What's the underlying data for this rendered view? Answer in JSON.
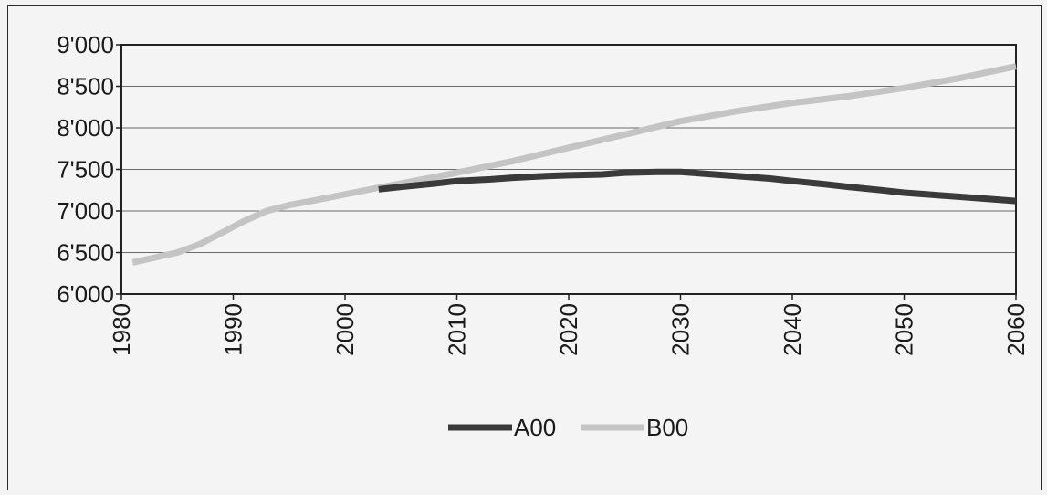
{
  "chart_data": {
    "type": "line",
    "title": "",
    "xlabel": "",
    "ylabel": "",
    "xlim": [
      1980,
      2060
    ],
    "ylim": [
      6000,
      9000
    ],
    "grid": true,
    "legend_position": "bottom",
    "y_ticks": [
      "6'000",
      "6'500",
      "7'000",
      "7'500",
      "8'000",
      "8'500",
      "9'000"
    ],
    "x_ticks": [
      "1980",
      "1990",
      "2000",
      "2010",
      "2020",
      "2030",
      "2040",
      "2050",
      "2060"
    ],
    "series": [
      {
        "name": "A00",
        "color": "#3a3a3a",
        "x": [
          2003,
          2005,
          2008,
          2010,
          2013,
          2015,
          2018,
          2020,
          2023,
          2025,
          2028,
          2030,
          2033,
          2035,
          2038,
          2040,
          2043,
          2045,
          2048,
          2050,
          2053,
          2055,
          2058,
          2060
        ],
        "y": [
          7260,
          7290,
          7330,
          7360,
          7380,
          7400,
          7420,
          7430,
          7440,
          7460,
          7470,
          7470,
          7440,
          7420,
          7390,
          7360,
          7320,
          7290,
          7250,
          7220,
          7190,
          7170,
          7140,
          7120
        ]
      },
      {
        "name": "B00",
        "color": "#c4c4c4",
        "x": [
          1981,
          1983,
          1985,
          1987,
          1989,
          1991,
          1993,
          1995,
          1997,
          2000,
          2003,
          2005,
          2010,
          2015,
          2020,
          2025,
          2030,
          2035,
          2040,
          2045,
          2050,
          2055,
          2060
        ],
        "y": [
          6380,
          6440,
          6500,
          6600,
          6740,
          6880,
          7000,
          7070,
          7120,
          7200,
          7280,
          7330,
          7460,
          7600,
          7760,
          7920,
          8080,
          8200,
          8300,
          8380,
          8480,
          8600,
          8740
        ]
      }
    ]
  }
}
